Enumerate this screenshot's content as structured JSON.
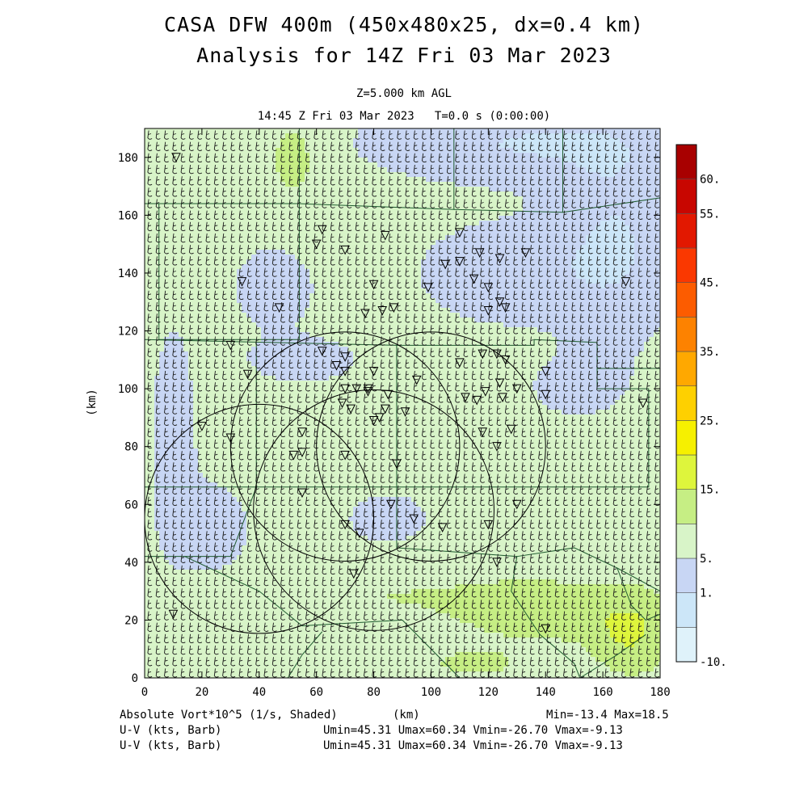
{
  "header": {
    "title_line1": "CASA DFW 400m (450x480x25, dx=0.4 km)",
    "title_line2": "Analysis for 14Z Fri 03 Mar 2023",
    "level": "Z=5.000 km AGL",
    "valid_time": "14:45 Z Fri 03 Mar 2023   T=0.0 s (0:00:00)"
  },
  "footer": {
    "field_label": "Absolute Vort*10^5 (1/s, Shaded)",
    "xunit": "(km)",
    "minmax": "Min=-13.4 Max=18.5",
    "barb1_label": "U-V (kts, Barb)",
    "barb1_stats": "Umin=45.31 Umax=60.34 Vmin=-26.70 Vmax=-9.13",
    "barb2_label": "U-V (kts, Barb)",
    "barb2_stats": "Umin=45.31 Umax=60.34 Vmin=-26.70 Vmax=-9.13"
  },
  "chart_data": {
    "type": "heatmap",
    "title": "CASA DFW 400m (450x480x25, dx=0.4 km)",
    "xlabel": "(km)",
    "ylabel": "(km)",
    "xlim": [
      0,
      180
    ],
    "ylim": [
      0,
      190
    ],
    "xticks": [
      0,
      20,
      40,
      60,
      80,
      100,
      120,
      140,
      160,
      180
    ],
    "yticks": [
      0,
      20,
      40,
      60,
      80,
      100,
      120,
      140,
      160,
      180
    ],
    "field": "Absolute Vort*10^5 (1/s, Shaded)",
    "field_min": -13.4,
    "field_max": 18.5,
    "colorbar": {
      "labels": [
        "60.",
        "55.",
        "45.",
        "35.",
        "25.",
        "15.",
        "5.",
        "1.",
        "-10."
      ],
      "label_levels": [
        60,
        55,
        45,
        35,
        25,
        15,
        5,
        1,
        -10
      ],
      "levels": [
        -10,
        -5,
        1,
        5,
        10,
        15,
        20,
        25,
        30,
        35,
        40,
        45,
        50,
        55,
        60
      ],
      "colors": [
        "#dff2fa",
        "#cce6f8",
        "#c8d6f4",
        "#d8f4c8",
        "#c6ee84",
        "#def53c",
        "#f6f000",
        "#fed000",
        "#ffa800",
        "#fd8200",
        "#fc5c00",
        "#fa3800",
        "#e21800",
        "#c80600",
        "#a80000"
      ]
    },
    "radar_rings": [
      {
        "center": [
          40,
          55
        ],
        "radius_km": 40
      },
      {
        "center": [
          80,
          58
        ],
        "radius_km": 42
      },
      {
        "center": [
          70,
          80
        ],
        "radius_km": 40
      },
      {
        "center": [
          100,
          80
        ],
        "radius_km": 40
      }
    ],
    "wind_barbs": {
      "u_min": 45.31,
      "u_max": 60.34,
      "v_min": -26.7,
      "v_max": -9.13,
      "units": "kts"
    }
  }
}
